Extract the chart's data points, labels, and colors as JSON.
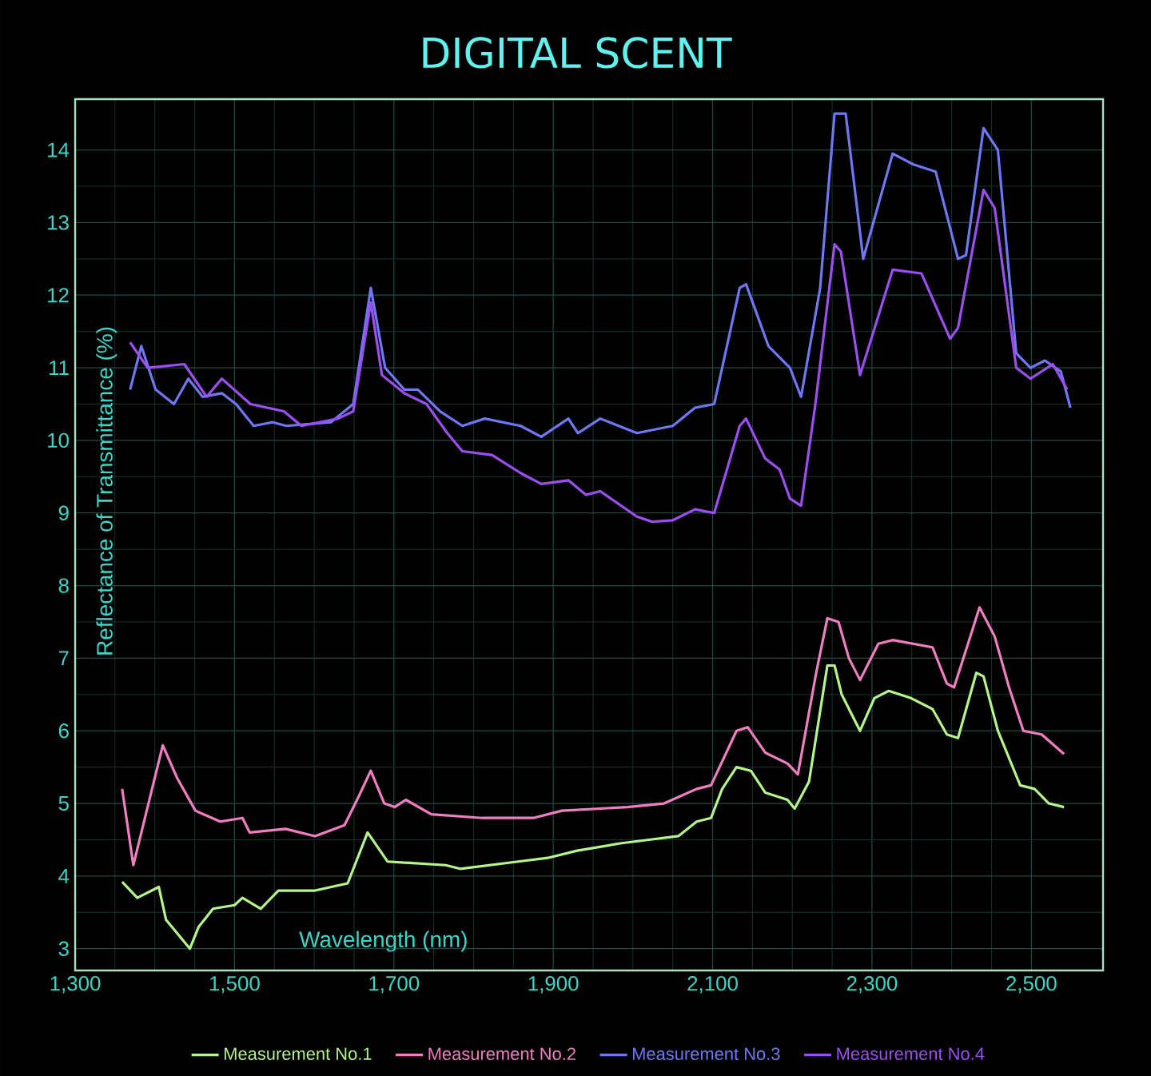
{
  "chart_data": {
    "type": "line",
    "title": "DIGITAL SCENT",
    "xlabel": "Wavelength (nm)",
    "ylabel": "Reflectance of Transmittance (%)",
    "xlim": [
      1300,
      2590
    ],
    "ylim": [
      2.7,
      14.7
    ],
    "xticks": [
      {
        "value": 1300,
        "label": "1,300"
      },
      {
        "value": 1500,
        "label": "1,500"
      },
      {
        "value": 1700,
        "label": "1,700"
      },
      {
        "value": 1900,
        "label": "1,900"
      },
      {
        "value": 2100,
        "label": "2,100"
      },
      {
        "value": 2300,
        "label": "2,300"
      },
      {
        "value": 2500,
        "label": "2,500"
      }
    ],
    "yticks": [
      3,
      4,
      5,
      6,
      7,
      8,
      9,
      10,
      11,
      12,
      13,
      14
    ],
    "grid": true,
    "legend": "bottom",
    "series": [
      {
        "name": "Measurement No.1",
        "color": "#b6f58a",
        "x": [
          1359,
          1378,
          1405,
          1414,
          1444,
          1455,
          1473,
          1500,
          1510,
          1533,
          1555,
          1601,
          1642,
          1667,
          1692,
          1765,
          1783,
          1856,
          1893,
          1930,
          1984,
          2020,
          2057,
          2080,
          2098,
          2112,
          2130,
          2148,
          2166,
          2194,
          2203,
          2221,
          2244,
          2253,
          2262,
          2285,
          2303,
          2321,
          2349,
          2376,
          2394,
          2408,
          2431,
          2440,
          2458,
          2486,
          2504,
          2522,
          2541
        ],
        "values": [
          3.92,
          3.7,
          3.85,
          3.4,
          3.0,
          3.3,
          3.55,
          3.6,
          3.7,
          3.55,
          3.8,
          3.8,
          3.9,
          4.6,
          4.2,
          4.15,
          4.1,
          4.2,
          4.25,
          4.35,
          4.45,
          4.5,
          4.55,
          4.75,
          4.8,
          5.2,
          5.5,
          5.45,
          5.15,
          5.05,
          4.93,
          5.3,
          6.9,
          6.9,
          6.5,
          6.0,
          6.45,
          6.55,
          6.45,
          6.3,
          5.95,
          5.9,
          6.8,
          6.75,
          6.0,
          5.25,
          5.2,
          5.0,
          4.95
        ]
      },
      {
        "name": "Measurement No.2",
        "color": "#f07ec0",
        "x": [
          1359,
          1373,
          1410,
          1428,
          1451,
          1482,
          1510,
          1519,
          1564,
          1601,
          1638,
          1656,
          1671,
          1688,
          1701,
          1715,
          1747,
          1811,
          1875,
          1911,
          1993,
          2039,
          2080,
          2098,
          2130,
          2144,
          2166,
          2194,
          2207,
          2230,
          2244,
          2258,
          2271,
          2285,
          2308,
          2326,
          2376,
          2394,
          2403,
          2422,
          2435,
          2454,
          2472,
          2490,
          2513,
          2541
        ],
        "values": [
          5.2,
          4.15,
          5.8,
          5.35,
          4.9,
          4.75,
          4.8,
          4.6,
          4.65,
          4.55,
          4.7,
          5.1,
          5.45,
          5.0,
          4.95,
          5.05,
          4.85,
          4.8,
          4.8,
          4.9,
          4.95,
          5.0,
          5.2,
          5.25,
          6.0,
          6.05,
          5.7,
          5.55,
          5.4,
          6.8,
          7.55,
          7.5,
          7.0,
          6.7,
          7.2,
          7.25,
          7.15,
          6.65,
          6.6,
          7.25,
          7.7,
          7.3,
          6.6,
          6.0,
          5.95,
          5.68
        ]
      },
      {
        "name": "Measurement No.3",
        "color": "#6f78f2",
        "x": [
          1369,
          1383,
          1401,
          1424,
          1442,
          1460,
          1484,
          1502,
          1524,
          1548,
          1565,
          1621,
          1649,
          1671,
          1689,
          1713,
          1730,
          1758,
          1786,
          1814,
          1859,
          1885,
          1919,
          1931,
          1959,
          2005,
          2050,
          2078,
          2102,
          2134,
          2142,
          2170,
          2197,
          2211,
          2235,
          2253,
          2267,
          2289,
          2326,
          2352,
          2380,
          2408,
          2418,
          2440,
          2458,
          2481,
          2499,
          2517,
          2537,
          2549
        ],
        "values": [
          10.7,
          11.3,
          10.7,
          10.5,
          10.85,
          10.6,
          10.65,
          10.5,
          10.2,
          10.25,
          10.2,
          10.25,
          10.5,
          12.1,
          11.0,
          10.7,
          10.7,
          10.4,
          10.2,
          10.3,
          10.2,
          10.05,
          10.3,
          10.1,
          10.3,
          10.1,
          10.2,
          10.45,
          10.5,
          12.1,
          12.15,
          11.3,
          11.0,
          10.6,
          12.1,
          14.5,
          14.5,
          12.5,
          13.95,
          13.8,
          13.7,
          12.5,
          12.55,
          14.3,
          14.0,
          11.2,
          11.0,
          11.1,
          10.95,
          10.45
        ]
      },
      {
        "name": "Measurement No.4",
        "color": "#9b4ff0",
        "x": [
          1369,
          1391,
          1437,
          1465,
          1484,
          1520,
          1562,
          1584,
          1630,
          1649,
          1671,
          1685,
          1713,
          1741,
          1767,
          1786,
          1823,
          1859,
          1885,
          1919,
          1941,
          1959,
          2005,
          2024,
          2050,
          2078,
          2102,
          2134,
          2142,
          2166,
          2184,
          2197,
          2211,
          2229,
          2253,
          2261,
          2285,
          2326,
          2362,
          2398,
          2408,
          2440,
          2454,
          2481,
          2499,
          2527,
          2545
        ],
        "values": [
          11.35,
          11.0,
          11.05,
          10.6,
          10.85,
          10.5,
          10.4,
          10.2,
          10.3,
          10.4,
          11.9,
          10.9,
          10.65,
          10.5,
          10.1,
          9.85,
          9.8,
          9.55,
          9.4,
          9.45,
          9.25,
          9.3,
          8.95,
          8.88,
          8.9,
          9.05,
          9.0,
          10.2,
          10.3,
          9.75,
          9.6,
          9.2,
          9.1,
          10.5,
          12.7,
          12.6,
          10.9,
          12.35,
          12.3,
          11.4,
          11.55,
          13.45,
          13.2,
          11.0,
          10.85,
          11.05,
          10.7
        ]
      }
    ]
  }
}
